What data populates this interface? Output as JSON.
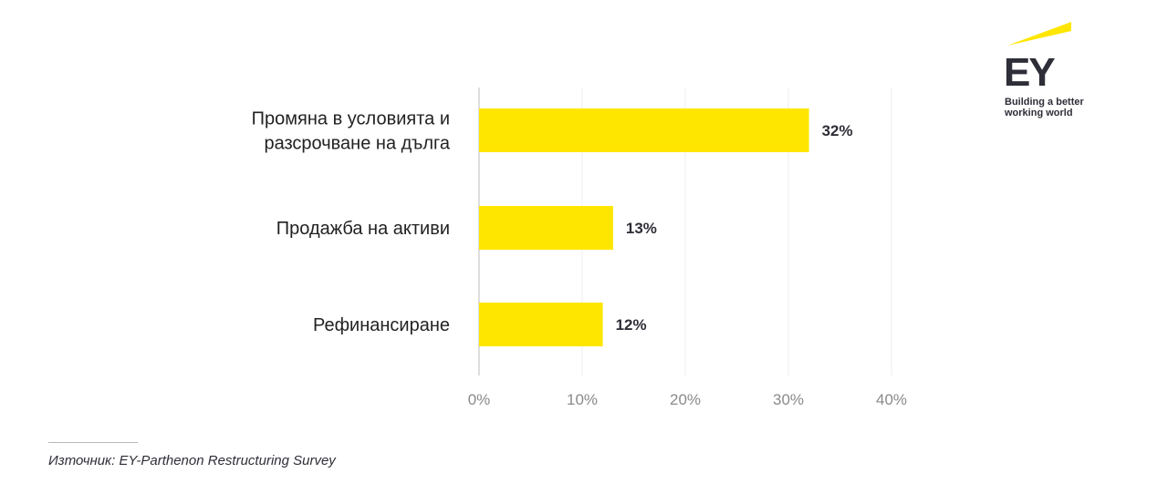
{
  "chart_data": {
    "type": "bar",
    "orientation": "horizontal",
    "categories": [
      [
        "Промяна в условията и",
        "разсрочване на дълга"
      ],
      [
        "Продажба на активи"
      ],
      [
        "Рефинансиране"
      ]
    ],
    "values": [
      32,
      13,
      12
    ],
    "value_labels": [
      "32%",
      "13%",
      "12%"
    ],
    "xlim": [
      0,
      40
    ],
    "xticks": [
      "0%",
      "10%",
      "20%",
      "30%",
      "40%"
    ],
    "grid": true,
    "bar_color": "#ffe600"
  },
  "brand": {
    "logo_text": "EY",
    "tagline_line1": "Building a better",
    "tagline_line2": "working world",
    "accent": "#ffe600",
    "dark": "#2e2e38"
  },
  "source": "Източник: EY-Parthenon Restructuring Survey"
}
